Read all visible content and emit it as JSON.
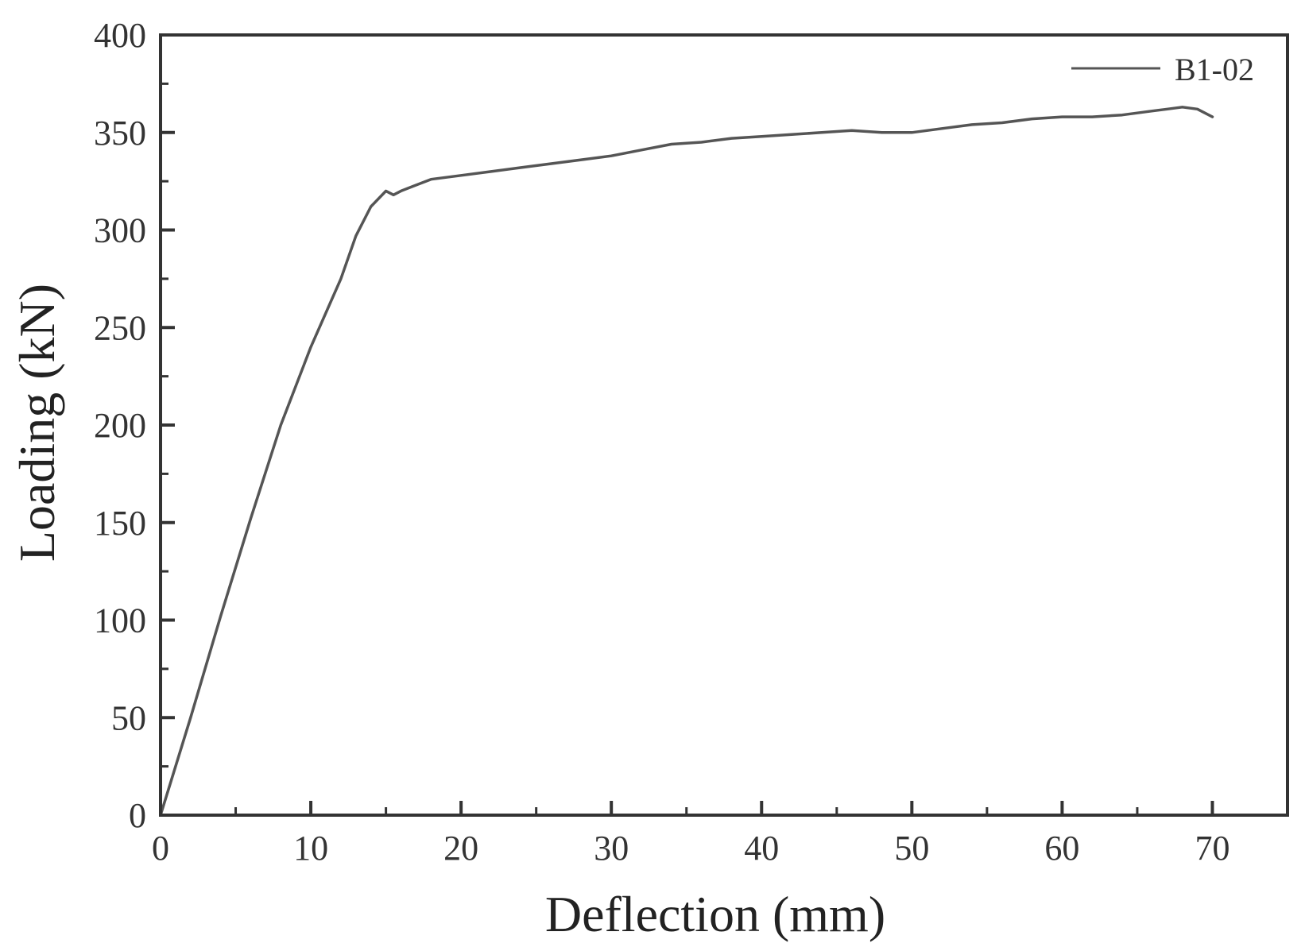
{
  "chart_data": {
    "type": "line",
    "xlabel": "Deflection (mm)",
    "ylabel": "Loading (kN)",
    "xlim": [
      0,
      75
    ],
    "ylim": [
      0,
      400
    ],
    "xticks": [
      0,
      10,
      20,
      30,
      40,
      50,
      60,
      70
    ],
    "yticks": [
      0,
      50,
      100,
      150,
      200,
      250,
      300,
      350,
      400
    ],
    "x_minor_step": 5,
    "y_minor_step": 25,
    "grid": false,
    "legend_position": "top-right",
    "colors": {
      "axes": "#333333",
      "line": "#555555"
    },
    "series": [
      {
        "name": "B1-02",
        "x": [
          0,
          2,
          4,
          6,
          8,
          10,
          12,
          13,
          14,
          15,
          15.5,
          16,
          17,
          18,
          20,
          22,
          24,
          26,
          28,
          30,
          32,
          34,
          36,
          38,
          40,
          42,
          44,
          46,
          48,
          50,
          52,
          54,
          56,
          58,
          60,
          62,
          64,
          66,
          67,
          68,
          69,
          70
        ],
        "y": [
          0,
          50,
          102,
          152,
          200,
          240,
          275,
          297,
          312,
          320,
          318,
          320,
          323,
          326,
          328,
          330,
          332,
          334,
          336,
          338,
          341,
          344,
          345,
          347,
          348,
          349,
          350,
          351,
          350,
          350,
          352,
          354,
          355,
          357,
          358,
          358,
          359,
          361,
          362,
          363,
          362,
          358
        ]
      }
    ]
  }
}
